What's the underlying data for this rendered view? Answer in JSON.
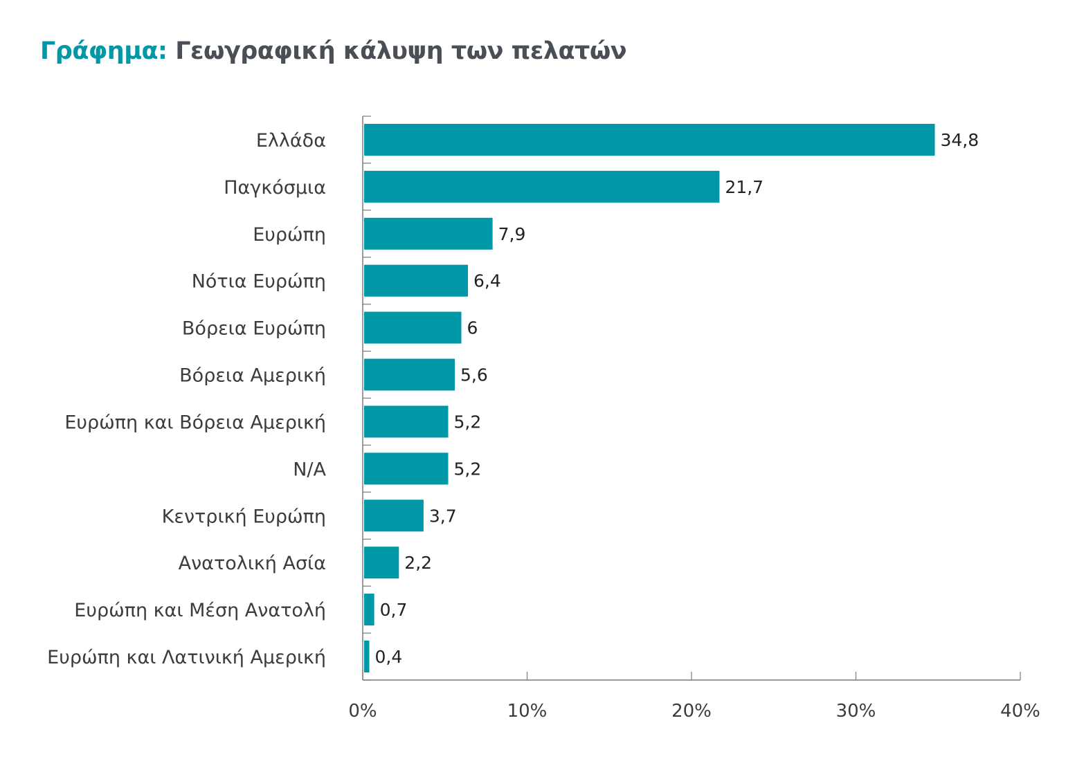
{
  "title": {
    "prefix": "Γράφημα:",
    "main": "Γεωγραφική κάλυψη των πελατών"
  },
  "colors": {
    "bar": "#0097a7",
    "title_accent": "#0097a7",
    "title_text": "#4a4f55",
    "axis": "#7a7a7a",
    "label_text": "#3c3c3c"
  },
  "chart_data": {
    "type": "bar",
    "orientation": "horizontal",
    "categories": [
      "Ελλάδα",
      "Παγκόσμια",
      "Ευρώπη",
      "Νότια Ευρώπη",
      "Βόρεια Ευρώπη",
      "Βόρεια Αμερική",
      "Ευρώπη και Βόρεια Αμερική",
      "Ν/Α",
      "Κεντρική Ευρώπη",
      "Ανατολική Ασία",
      "Ευρώπη και Μέση Ανατολή",
      "Ευρώπη και Λατινική Αμερική"
    ],
    "values": [
      34.8,
      21.7,
      7.9,
      6.4,
      6,
      5.6,
      5.2,
      5.2,
      3.7,
      2.2,
      0.7,
      0.4
    ],
    "data_labels": [
      "34,8",
      "21,7",
      "7,9",
      "6,4",
      "6",
      "5,6",
      "5,2",
      "5,2",
      "3,7",
      "2,2",
      "0,7",
      "0,4"
    ],
    "xlim": [
      0,
      40
    ],
    "x_ticks": [
      0,
      10,
      20,
      30,
      40
    ],
    "x_tick_labels": [
      "0%",
      "10%",
      "20%",
      "30%",
      "40%"
    ],
    "grid": false,
    "legend": "none"
  }
}
